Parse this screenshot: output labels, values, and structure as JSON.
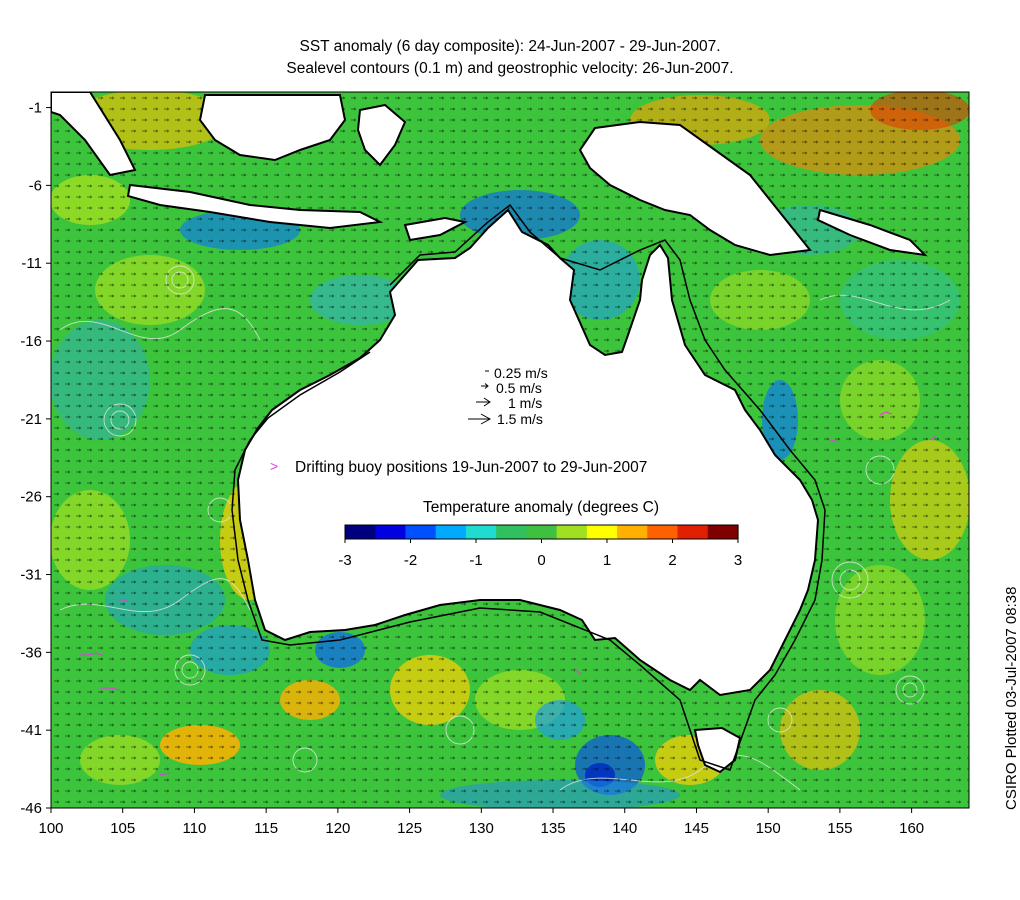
{
  "map": {
    "title_line1": "SST anomaly (6 day composite): 24-Jun-2007 - 29-Jun-2007.",
    "title_line2": "Sealevel contours (0.1 m) and geostrophic velocity: 26-Jun-2007.",
    "credit": "CSIRO Plotted 03-Jul-2007 08:38",
    "region": "Australia and surrounding oceans",
    "lon_range": [
      100,
      164
    ],
    "lat_range": [
      -46,
      0
    ],
    "x_ticks": [
      100,
      105,
      110,
      115,
      120,
      125,
      130,
      135,
      140,
      145,
      150,
      155,
      160
    ],
    "y_ticks": [
      -1,
      -6,
      -11,
      -16,
      -21,
      -26,
      -31,
      -36,
      -41,
      -46
    ],
    "land_color": "#ffffff",
    "ocean_base_color": "#3cc43c",
    "buoy_color": "#e040e0",
    "contour_color": "#e8e8e8"
  },
  "velocity_legend": [
    {
      "label": "0.25 m/s"
    },
    {
      "label": "0.5 m/s"
    },
    {
      "label": "1 m/s"
    },
    {
      "label": "1.5 m/s"
    }
  ],
  "buoy_legend": {
    "symbol": ">",
    "label": "Drifting buoy positions 19-Jun-2007 to 29-Jun-2007"
  },
  "colorbar": {
    "title": "Temperature anomaly (degrees C)",
    "min": -3,
    "max": 3,
    "tick_labels": [
      "-3",
      "-2",
      "-1",
      "0",
      "1",
      "2",
      "3"
    ],
    "colors": [
      "#00007f",
      "#0000e0",
      "#0050ff",
      "#00aaff",
      "#20dcd0",
      "#30c060",
      "#40c040",
      "#a0e020",
      "#ffff00",
      "#ffb000",
      "#ff6000",
      "#e02000",
      "#800000"
    ]
  }
}
